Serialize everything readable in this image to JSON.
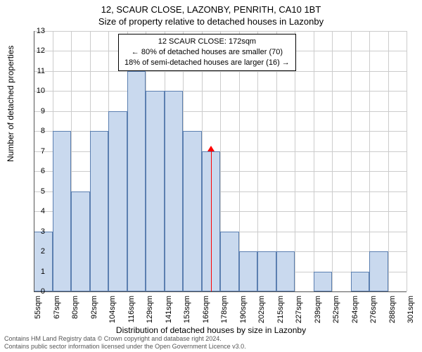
{
  "chart": {
    "type": "histogram",
    "title_main": "12, SCAUR CLOSE, LAZONBY, PENRITH, CA10 1BT",
    "title_sub": "Size of property relative to detached houses in Lazonby",
    "x_axis_title": "Distribution of detached houses by size in Lazonby",
    "y_axis_title": "Number of detached properties",
    "background_color": "#ffffff",
    "grid_color": "#cccccc",
    "axis_color": "#555555",
    "bar_fill": "#c9d9ee",
    "bar_border": "#5b7fb0",
    "title_fontsize": 13,
    "axis_title_fontsize": 12,
    "tick_fontsize": 11,
    "y": {
      "min": 0,
      "max": 13,
      "tick_step": 1,
      "ticks": [
        0,
        1,
        2,
        3,
        4,
        5,
        6,
        7,
        8,
        9,
        10,
        11,
        12,
        13
      ]
    },
    "x": {
      "tick_labels": [
        "55sqm",
        "67sqm",
        "80sqm",
        "92sqm",
        "104sqm",
        "116sqm",
        "129sqm",
        "141sqm",
        "153sqm",
        "166sqm",
        "178sqm",
        "190sqm",
        "202sqm",
        "215sqm",
        "227sqm",
        "239sqm",
        "252sqm",
        "264sqm",
        "276sqm",
        "288sqm",
        "301sqm"
      ]
    },
    "bars": [
      3,
      8,
      5,
      8,
      9,
      11,
      10,
      10,
      8,
      7,
      3,
      2,
      2,
      2,
      0,
      1,
      0,
      1,
      2,
      0
    ],
    "annotation": {
      "lines": [
        "12 SCAUR CLOSE: 172sqm",
        "← 80% of detached houses are smaller (70)",
        "18% of semi-detached houses are larger (16) →"
      ],
      "border_color": "#000000",
      "bg_color": "#ffffff",
      "fontsize": 11,
      "ref_value": 172,
      "ref_color": "#ff0000"
    },
    "footer": {
      "line1": "Contains HM Land Registry data © Crown copyright and database right 2024.",
      "line2": "Contains public sector information licensed under the Open Government Licence v3.0.",
      "color": "#555555",
      "fontsize": 9
    }
  }
}
